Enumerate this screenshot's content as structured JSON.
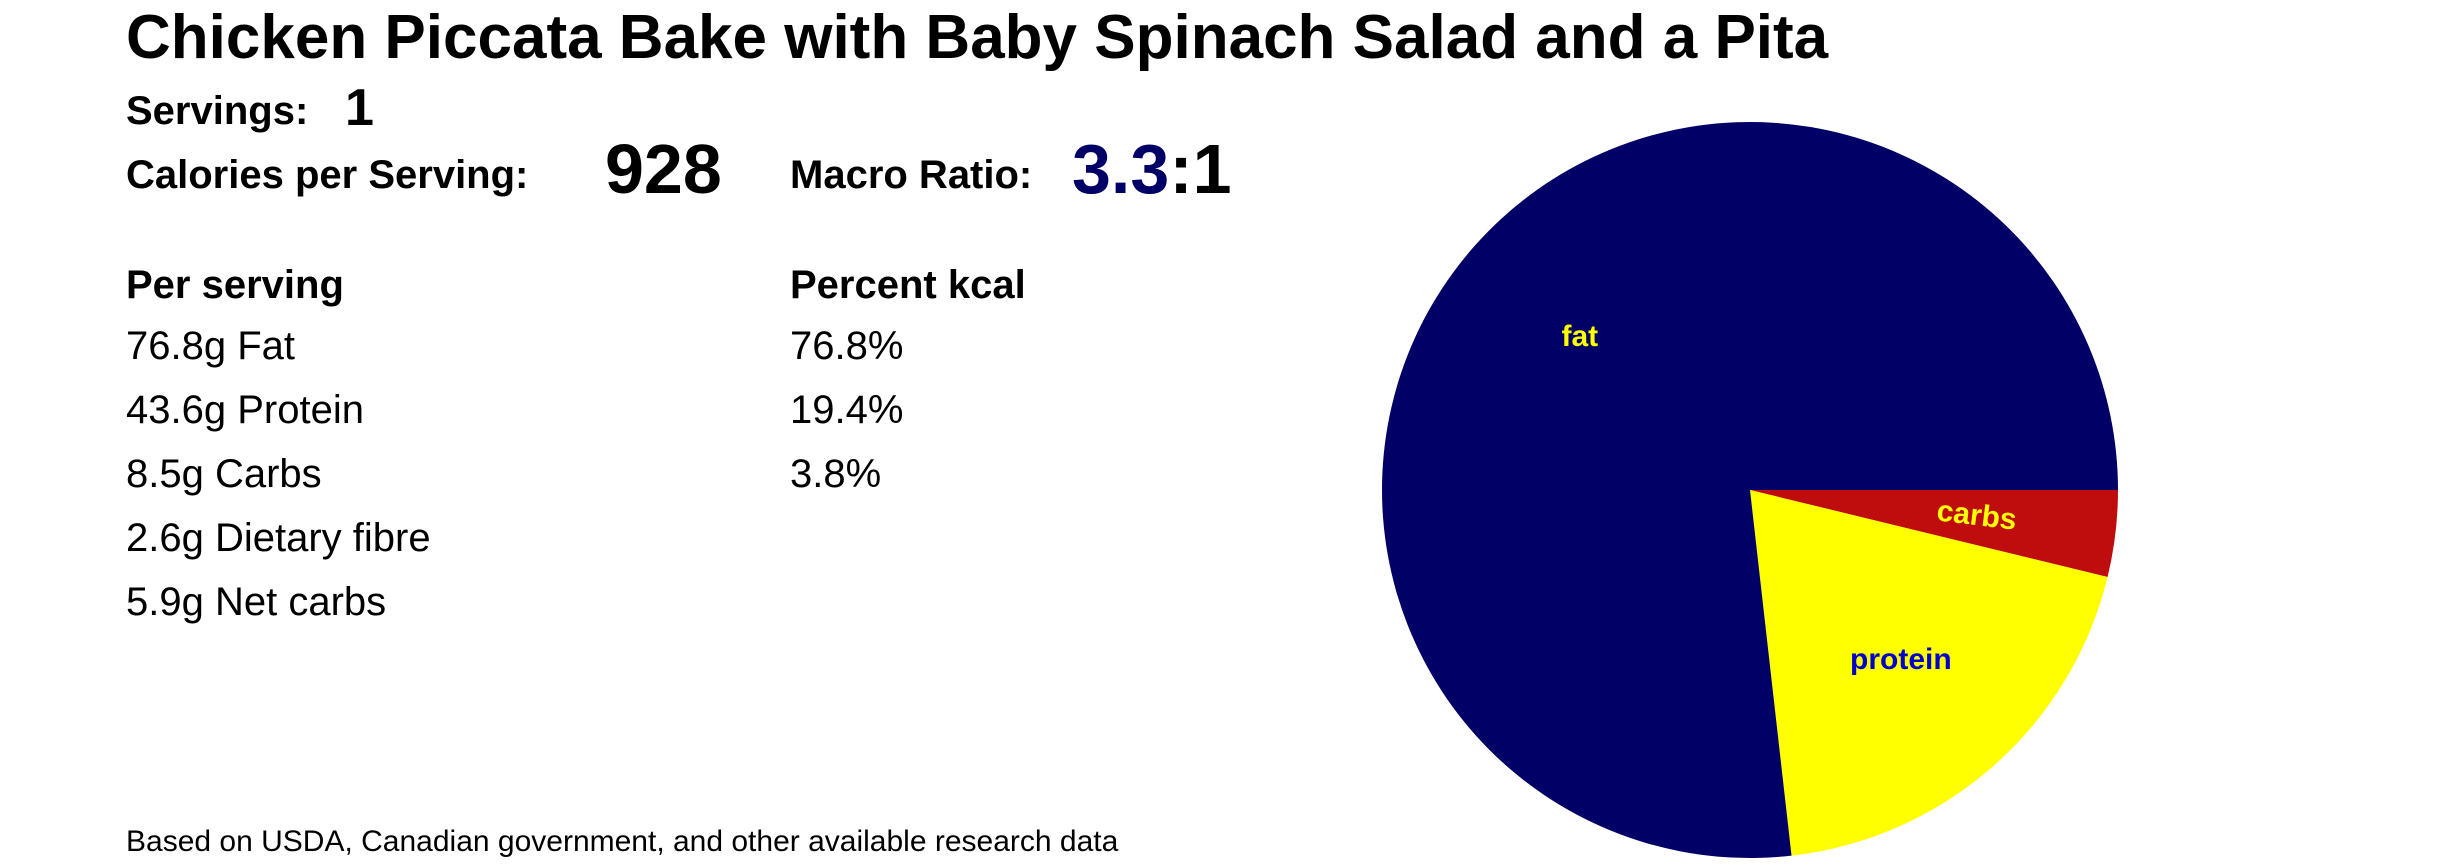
{
  "title": "Chicken Piccata Bake with Baby Spinach Salad and a Pita",
  "servings": {
    "label": "Servings:",
    "value": "1"
  },
  "calories": {
    "label": "Calories per Serving:",
    "value": "928"
  },
  "macro_ratio": {
    "label": "Macro Ratio:",
    "value": "3.3",
    "suffix": ":1",
    "value_color": "#000066"
  },
  "per_serving": {
    "header": "Per serving",
    "items": [
      "76.8g Fat",
      "43.6g Protein",
      "8.5g Carbs",
      "2.6g Dietary fibre",
      "5.9g Net carbs"
    ]
  },
  "percent_kcal": {
    "header": "Percent kcal",
    "items": [
      "76.8%",
      "19.4%",
      "3.8%"
    ]
  },
  "footer": "Based on USDA, Canadian government, and other available research data",
  "chart_data": {
    "type": "pie",
    "title": "",
    "start_angle_deg": 0,
    "direction": "clockwise",
    "slices": [
      {
        "label": "carbs",
        "value": 3.8,
        "color": "#bf0d0d",
        "label_color": "#ffff00"
      },
      {
        "label": "protein",
        "value": 19.4,
        "color": "#ffff00",
        "label_color": "#0000cc"
      },
      {
        "label": "fat",
        "value": 76.8,
        "color": "#000066",
        "label_color": "#ffff00"
      }
    ]
  }
}
